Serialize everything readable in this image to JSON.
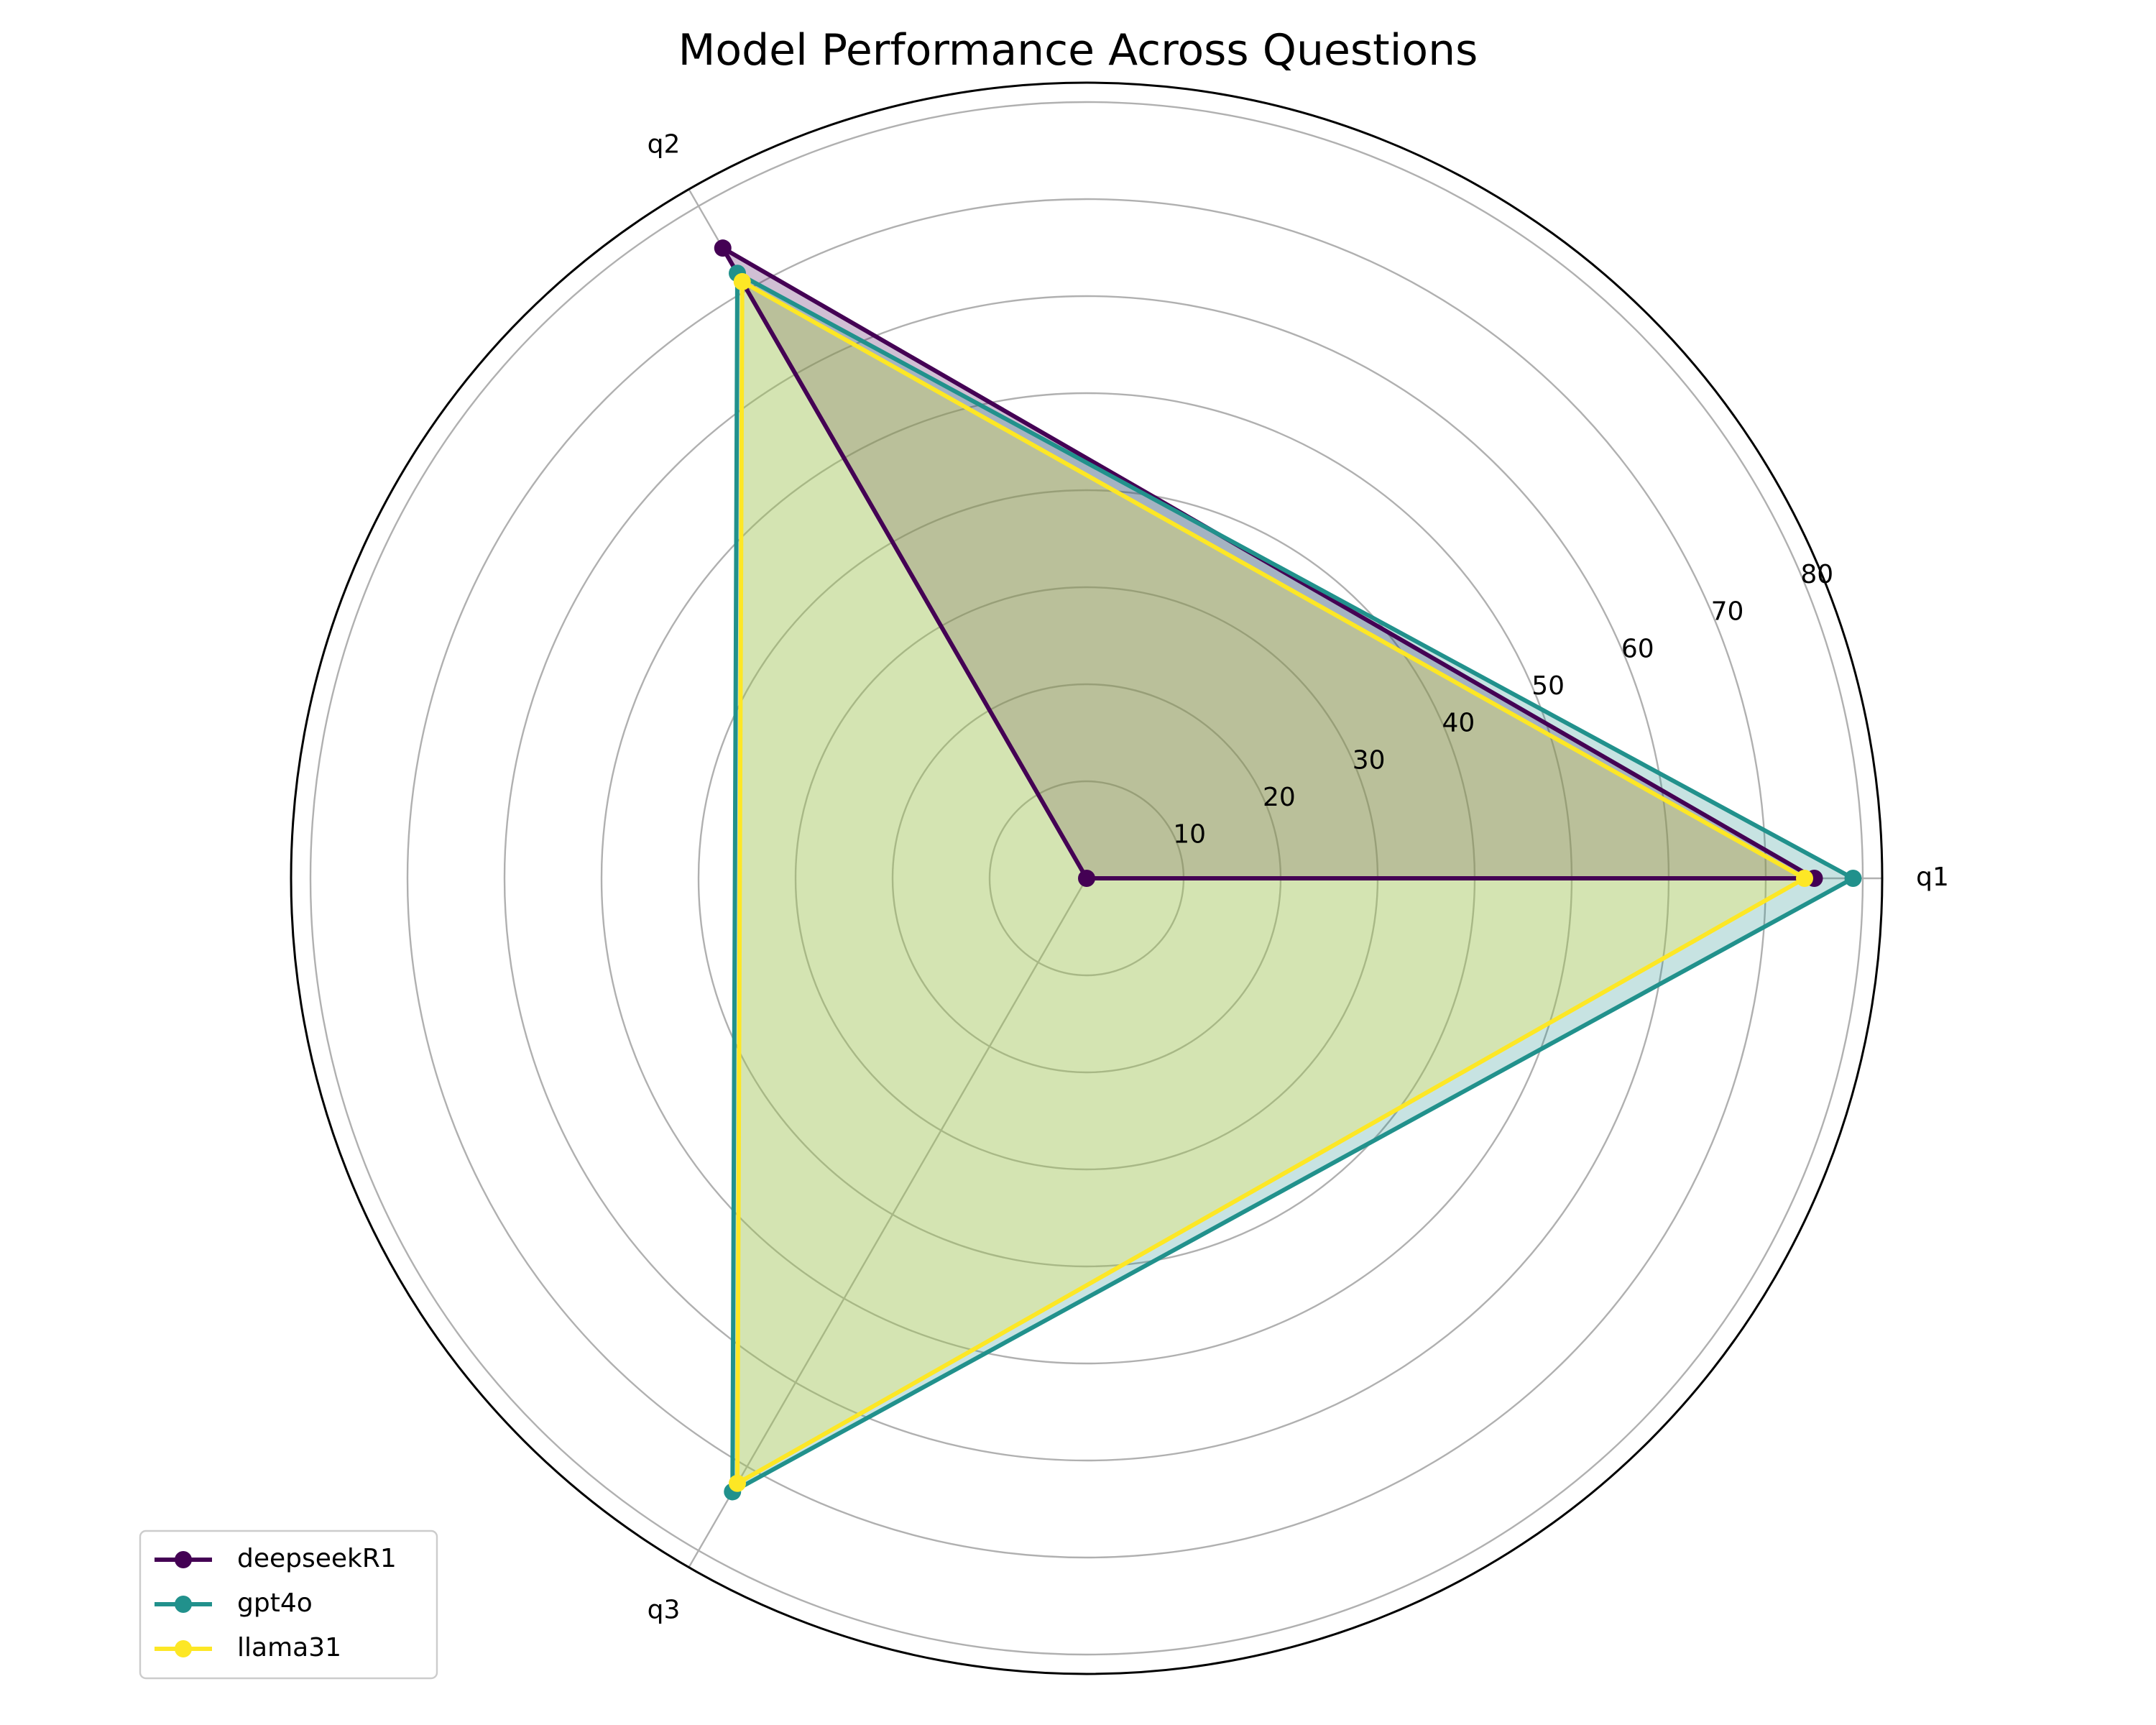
{
  "chart_data": {
    "type": "radar",
    "title": "Model Performance Across Questions",
    "categories": [
      "q1",
      "q2",
      "q3"
    ],
    "radial_ticks": [
      10,
      20,
      30,
      40,
      50,
      60,
      70,
      80
    ],
    "rlim": [
      0,
      82
    ],
    "grid": true,
    "legend_position": "lower-left",
    "series": [
      {
        "name": "deepseekR1",
        "values": [
          75,
          75,
          0
        ],
        "color": "#440154"
      },
      {
        "name": "gpt4o",
        "values": [
          79,
          72,
          73
        ],
        "color": "#21918c"
      },
      {
        "name": "llama31",
        "values": [
          74,
          71,
          72
        ],
        "color": "#fde725"
      }
    ]
  }
}
